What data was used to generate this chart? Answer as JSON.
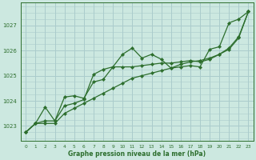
{
  "xlabel": "Graphe pression niveau de la mer (hPa)",
  "bg_color": "#cce8e0",
  "grid_color": "#aacccc",
  "line_color": "#2d6e2d",
  "xlim": [
    -0.5,
    23.5
  ],
  "ylim": [
    1022.4,
    1027.9
  ],
  "yticks": [
    1023,
    1024,
    1025,
    1026,
    1027
  ],
  "xticks": [
    0,
    1,
    2,
    3,
    4,
    5,
    6,
    7,
    8,
    9,
    10,
    11,
    12,
    13,
    14,
    15,
    16,
    17,
    18,
    19,
    20,
    21,
    22,
    23
  ],
  "series1": [
    1022.75,
    1023.1,
    1023.2,
    1023.2,
    1023.8,
    1023.9,
    1024.05,
    1025.05,
    1025.25,
    1025.35,
    1025.85,
    1026.1,
    1025.7,
    1025.85,
    1025.65,
    1025.3,
    1025.35,
    1025.4,
    1025.35,
    1026.05,
    1026.15,
    1027.1,
    1027.25,
    1027.55
  ],
  "series2": [
    1022.75,
    1023.1,
    1023.75,
    1023.2,
    1024.15,
    1024.2,
    1024.1,
    1024.75,
    1024.85,
    1025.35,
    1025.35,
    1025.35,
    1025.4,
    1025.45,
    1025.5,
    1025.5,
    1025.55,
    1025.6,
    1025.55,
    1025.65,
    1025.85,
    1026.05,
    1026.5,
    1027.55
  ],
  "series3": [
    1022.75,
    1023.1,
    1023.1,
    1023.1,
    1023.5,
    1023.7,
    1023.9,
    1024.1,
    1024.3,
    1024.5,
    1024.7,
    1024.9,
    1025.0,
    1025.1,
    1025.2,
    1025.3,
    1025.45,
    1025.55,
    1025.6,
    1025.7,
    1025.85,
    1026.1,
    1026.55,
    1027.55
  ]
}
